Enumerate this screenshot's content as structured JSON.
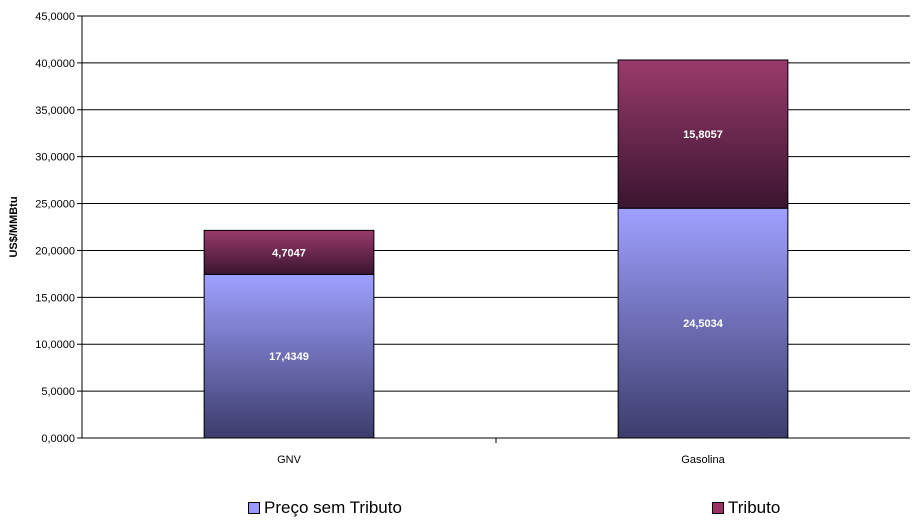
{
  "chart_data": {
    "type": "bar",
    "stacked": true,
    "categories": [
      "GNV",
      "Gasolina"
    ],
    "series": [
      {
        "name": "Preço sem Tributo",
        "values": [
          17.4349,
          24.5034
        ],
        "labels": [
          "17,4349",
          "24,5034"
        ],
        "color": "#9999ff"
      },
      {
        "name": "Tributo",
        "values": [
          4.7047,
          15.8057
        ],
        "labels": [
          "4,7047",
          "15,8057"
        ],
        "color": "#993366"
      }
    ],
    "ylabel": "US$/MMBtu",
    "xlabel": "",
    "ylim": [
      0,
      45
    ],
    "yticks": [
      0,
      5,
      10,
      15,
      20,
      25,
      30,
      35,
      40,
      45
    ],
    "ytick_labels": [
      "0,0000",
      "5,0000",
      "10,0000",
      "15,0000",
      "20,0000",
      "25,0000",
      "30,0000",
      "35,0000",
      "40,0000",
      "45,0000"
    ],
    "grid": true,
    "legend": "bottom"
  },
  "legend": {
    "item1": "Preço sem Tributo",
    "item2": "Tributo"
  }
}
